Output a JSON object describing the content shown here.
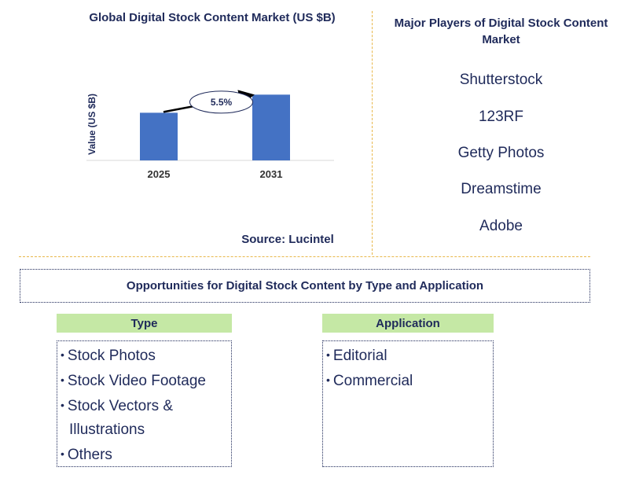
{
  "chart_data": {
    "type": "bar",
    "title": "Global Digital Stock Content Market (US $B)",
    "ylabel": "Value (US $B)",
    "xlabel": "",
    "categories": [
      "2025",
      "2031"
    ],
    "values": [
      1.0,
      1.38
    ],
    "ylim": [
      0,
      1.65
    ],
    "bar_color": "#4472c4",
    "annotation": {
      "text": "5.5%",
      "type": "CAGR arrow",
      "from": "2025",
      "to": "2031"
    },
    "grid": false,
    "legend": "none"
  },
  "source": "Source: Lucintel",
  "players": {
    "title": "Major Players of Digital Stock Content Market",
    "items": [
      "Shutterstock",
      "123RF",
      "Getty Photos",
      "Dreamstime",
      "Adobe"
    ]
  },
  "opportunities": {
    "title": "Opportunities for Digital Stock Content by Type and Application",
    "type": {
      "header": "Type",
      "items": [
        "Stock Photos",
        "Stock Video Footage",
        "Stock Vectors &",
        "Illustrations",
        "Others"
      ]
    },
    "application": {
      "header": "Application",
      "items": [
        "Editorial",
        "Commercial"
      ]
    }
  },
  "colors": {
    "text": "#1f2a5a",
    "divider": "#e8b74a",
    "header_fill": "#c5e8a5",
    "bar": "#4472c4"
  }
}
